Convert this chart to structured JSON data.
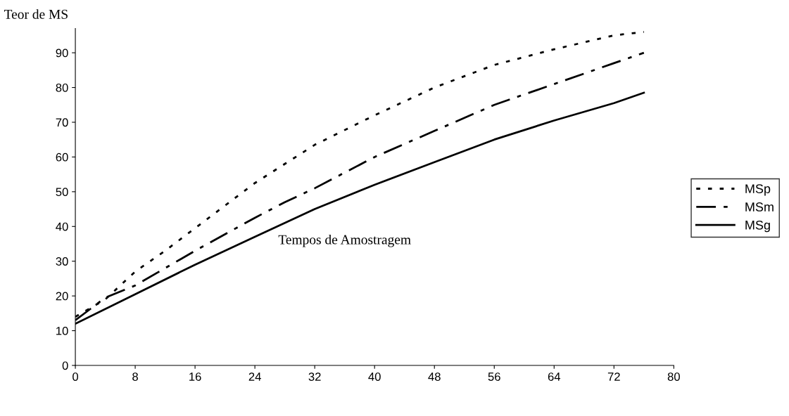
{
  "chart_data": {
    "type": "line",
    "xlabel": "Tempos de Amostragem",
    "ylabel": "Teor de MS",
    "xlim": [
      0,
      80
    ],
    "xticks": [
      0,
      8,
      16,
      24,
      32,
      40,
      48,
      56,
      64,
      72,
      80
    ],
    "ylim": [
      0,
      97
    ],
    "yticks": [
      0,
      10,
      20,
      30,
      40,
      50,
      60,
      70,
      80,
      90
    ],
    "grid": false,
    "legend": "right",
    "series": [
      {
        "name": "MSp",
        "color": "#000000",
        "line_style": "dotted",
        "x": [
          0,
          4,
          8,
          12,
          16,
          20,
          24,
          32,
          40,
          48,
          56,
          64,
          72,
          76
        ],
        "values": [
          14,
          19,
          27,
          33,
          39.5,
          46,
          52.5,
          63.5,
          72,
          80,
          86.5,
          91,
          95,
          96
        ]
      },
      {
        "name": "MSm",
        "color": "#000000",
        "line_style": "dashdot",
        "x": [
          0,
          4,
          8,
          16,
          24,
          28,
          32,
          40,
          48,
          56,
          64,
          72,
          76
        ],
        "values": [
          13,
          19.5,
          23,
          33,
          42.5,
          47,
          51,
          60,
          67.5,
          75,
          81,
          87,
          90
        ]
      },
      {
        "name": "MSg",
        "color": "#000000",
        "line_style": "solid",
        "x": [
          0,
          8,
          16,
          24,
          32,
          40,
          48,
          56,
          64,
          72,
          76
        ],
        "values": [
          12,
          20.5,
          29,
          37,
          45,
          52,
          58.5,
          65,
          70.5,
          75.5,
          78.5
        ]
      }
    ]
  }
}
